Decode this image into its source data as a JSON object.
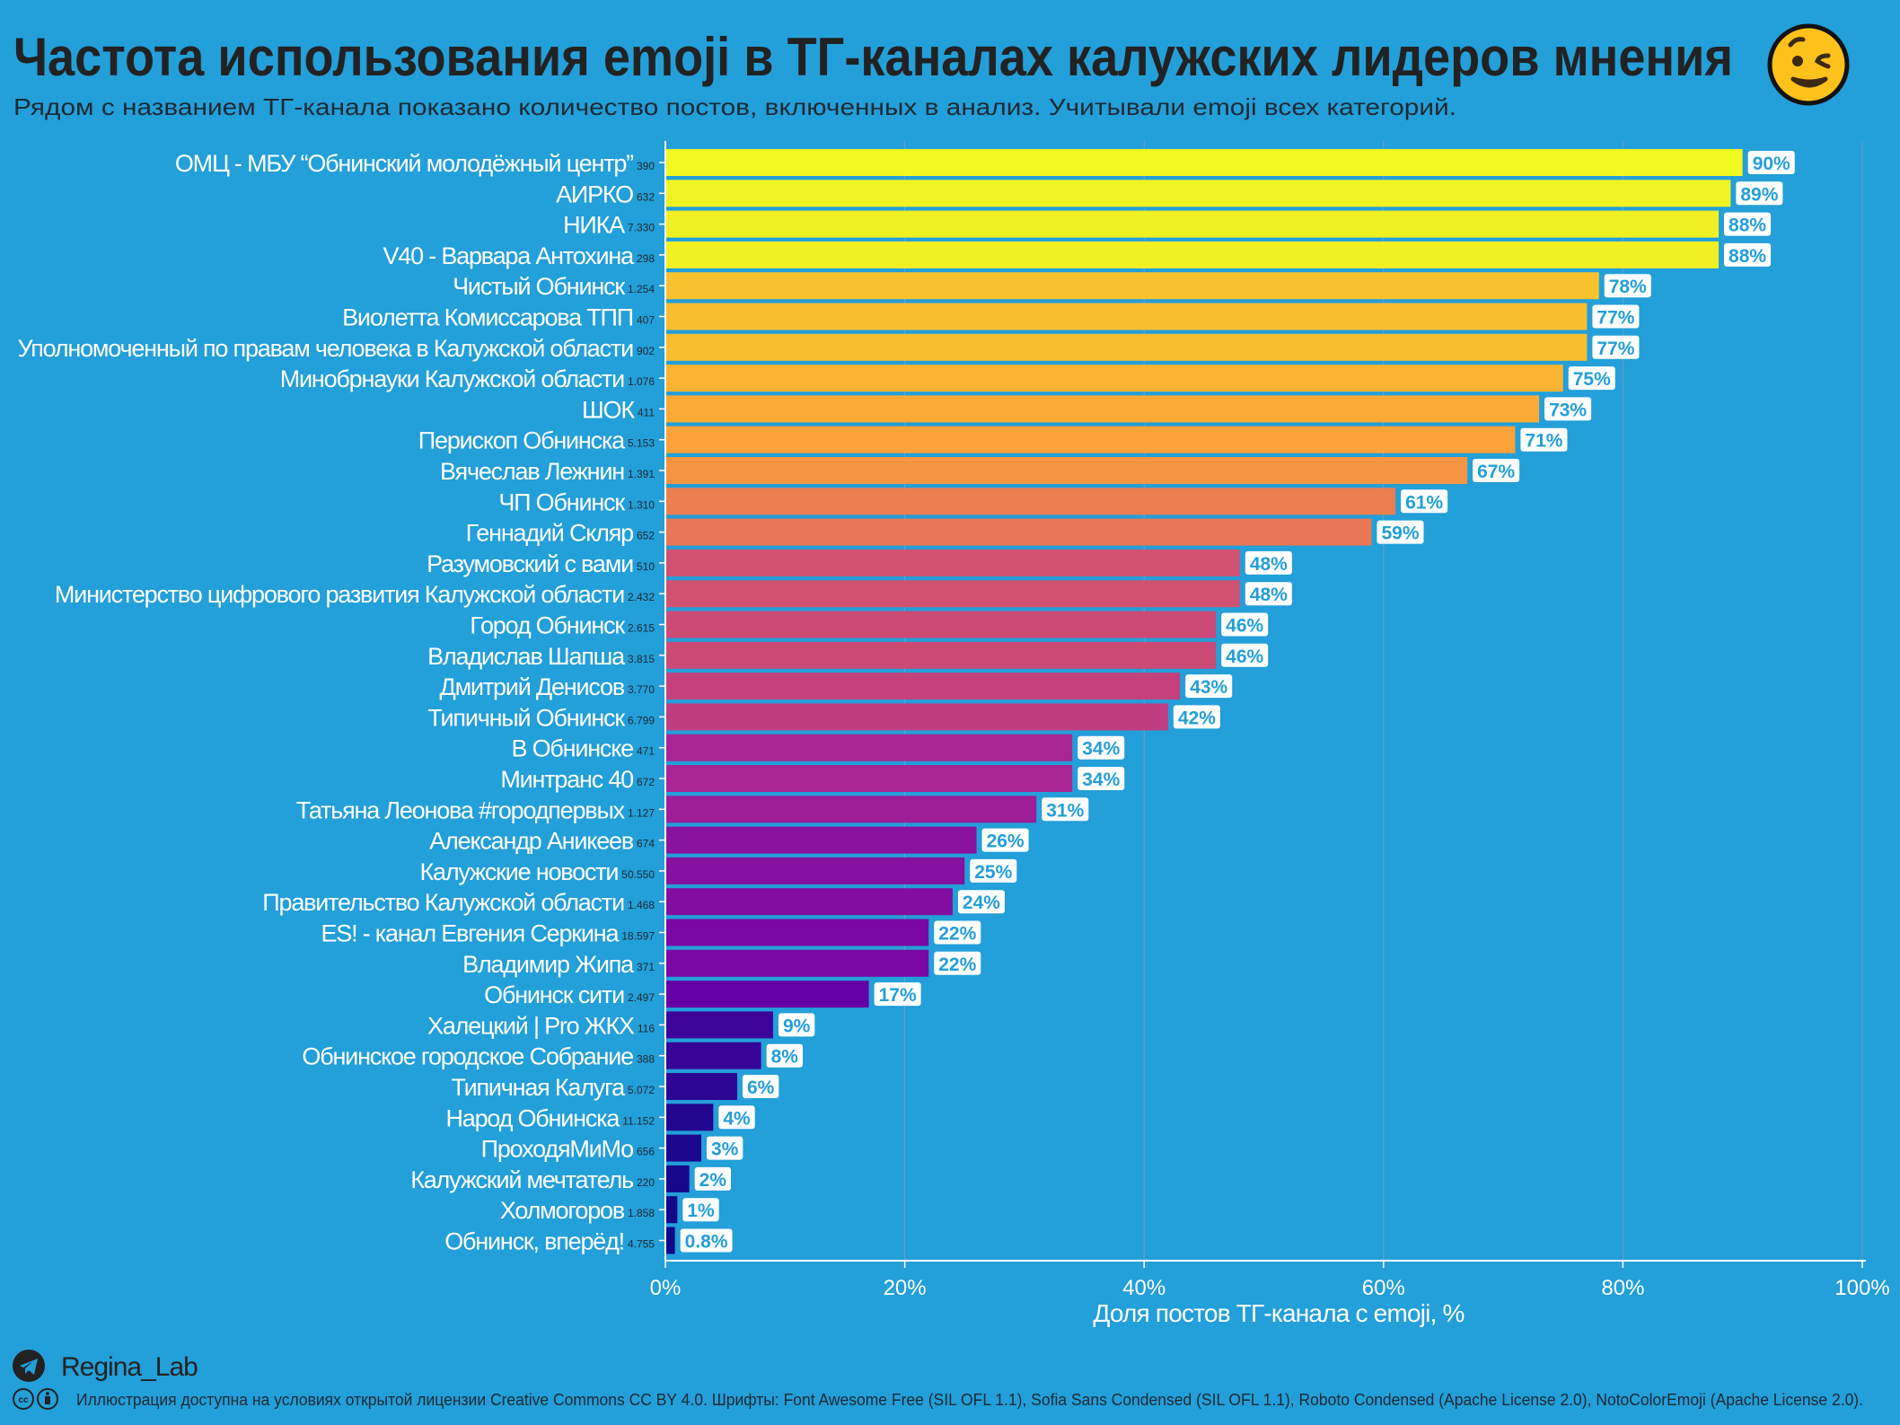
{
  "title": "Частота использования emoji в ТГ-каналах калужских лидеров мнения",
  "title_emoji": "😉",
  "subtitle": "Рядом с названием ТГ-канала показано количество постов, включенных в анализ. Учитывали emoji всех категорий.",
  "footer": {
    "author": "Regina_Lab",
    "author_icon": "telegram-icon",
    "license_icon": "creative-commons-by-icon",
    "license": "Иллюстрация доступна на условиях открытой лицензии Creative Commons CC BY 4.0. Шрифты: Font Awesome Free (SIL OFL 1.1), Sofia Sans Condensed (SIL OFL 1.1), Roboto Condensed (Apache License 2.0), NotoColorEmoji (Apache License 2.0)."
  },
  "colors": {
    "background": "#239fd9",
    "colormap": [
      "#0d0887",
      "#6a00a8",
      "#b12a90",
      "#e16462",
      "#fca636",
      "#f0f921"
    ]
  },
  "chart_data": {
    "type": "bar",
    "orientation": "horizontal",
    "xlabel": "Доля постов ТГ-канала с emoji, %",
    "xlim": [
      0,
      100
    ],
    "xticks": [
      "0%",
      "20%",
      "40%",
      "60%",
      "80%",
      "100%"
    ],
    "grid": "vertical",
    "categories": [
      {
        "name": "ОМЦ - МБУ “Обнинский молодёжный центр”",
        "posts": "390",
        "value": 90,
        "label": "90%"
      },
      {
        "name": "АИРКО",
        "posts": "632",
        "value": 89,
        "label": "89%"
      },
      {
        "name": "НИКА",
        "posts": "7.330",
        "value": 88,
        "label": "88%"
      },
      {
        "name": "V40 - Варвара Антохина",
        "posts": "298",
        "value": 88,
        "label": "88%"
      },
      {
        "name": "Чистый Обнинск",
        "posts": "1.254",
        "value": 78,
        "label": "78%"
      },
      {
        "name": "Виолетта Комиссарова ТПП",
        "posts": "407",
        "value": 77,
        "label": "77%"
      },
      {
        "name": "Уполномоченный по правам человека в Калужской области",
        "posts": "902",
        "value": 77,
        "label": "77%"
      },
      {
        "name": "Минобрнауки Калужской области",
        "posts": "1.076",
        "value": 75,
        "label": "75%"
      },
      {
        "name": "ШОК",
        "posts": "411",
        "value": 73,
        "label": "73%"
      },
      {
        "name": "Перископ Обнинска",
        "posts": "5.153",
        "value": 71,
        "label": "71%"
      },
      {
        "name": "Вячеслав Лежнин",
        "posts": "1.391",
        "value": 67,
        "label": "67%"
      },
      {
        "name": "ЧП Обнинск",
        "posts": "1.310",
        "value": 61,
        "label": "61%"
      },
      {
        "name": "Геннадий Скляр",
        "posts": "652",
        "value": 59,
        "label": "59%"
      },
      {
        "name": "Разумовский с вами",
        "posts": "510",
        "value": 48,
        "label": "48%"
      },
      {
        "name": "Министерство цифрового развития Калужской области",
        "posts": "2.432",
        "value": 48,
        "label": "48%"
      },
      {
        "name": "Город Обнинск",
        "posts": "2.615",
        "value": 46,
        "label": "46%"
      },
      {
        "name": "Владислав Шапша",
        "posts": "3.815",
        "value": 46,
        "label": "46%"
      },
      {
        "name": "Дмитрий Денисов",
        "posts": "3.770",
        "value": 43,
        "label": "43%"
      },
      {
        "name": "Типичный Обнинск",
        "posts": "6.799",
        "value": 42,
        "label": "42%"
      },
      {
        "name": "В Обнинске",
        "posts": "471",
        "value": 34,
        "label": "34%"
      },
      {
        "name": "Минтранс 40",
        "posts": "672",
        "value": 34,
        "label": "34%"
      },
      {
        "name": "Татьяна Леонова #городпервых",
        "posts": "1.127",
        "value": 31,
        "label": "31%"
      },
      {
        "name": "Александр Аникеев",
        "posts": "674",
        "value": 26,
        "label": "26%"
      },
      {
        "name": "Калужские новости",
        "posts": "50.550",
        "value": 25,
        "label": "25%"
      },
      {
        "name": "Правительство Калужской области",
        "posts": "1.468",
        "value": 24,
        "label": "24%"
      },
      {
        "name": "ES! - канал Евгения Серкина",
        "posts": "18.597",
        "value": 22,
        "label": "22%"
      },
      {
        "name": "Владимир Жипа",
        "posts": "371",
        "value": 22,
        "label": "22%"
      },
      {
        "name": "Обнинск сити",
        "posts": "2.497",
        "value": 17,
        "label": "17%"
      },
      {
        "name": "Халецкий | Pro ЖКХ",
        "posts": "116",
        "value": 9,
        "label": "9%"
      },
      {
        "name": "Обнинское городское Собрание",
        "posts": "388",
        "value": 8,
        "label": "8%"
      },
      {
        "name": "Типичная Калуга",
        "posts": "5.072",
        "value": 6,
        "label": "6%"
      },
      {
        "name": "Народ Обнинска",
        "posts": "11.152",
        "value": 4,
        "label": "4%"
      },
      {
        "name": "ПроходяМиМо",
        "posts": "656",
        "value": 3,
        "label": "3%"
      },
      {
        "name": "Калужский мечтатель",
        "posts": "220",
        "value": 2,
        "label": "2%"
      },
      {
        "name": "Холмогоров",
        "posts": "1.858",
        "value": 1,
        "label": "1%"
      },
      {
        "name": "Обнинск, вперёд!",
        "posts": "4.755",
        "value": 0.8,
        "label": "0.8%"
      }
    ]
  }
}
